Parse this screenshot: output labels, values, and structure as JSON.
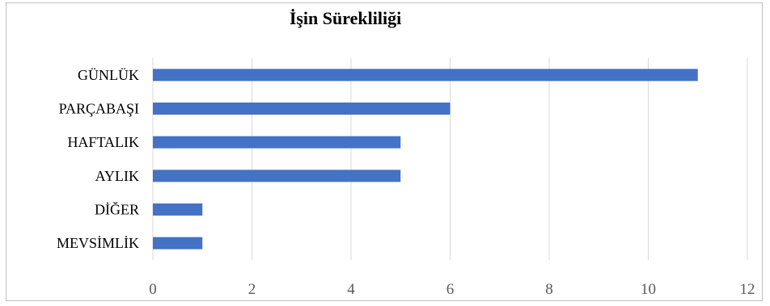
{
  "chart_data": {
    "type": "bar",
    "orientation": "horizontal",
    "title": "İşin Sürekliliği",
    "categories": [
      "GÜNLÜK",
      "PARÇABAŞI",
      "HAFTALIK",
      "AYLIK",
      "DİĞER",
      "MEVSİMLİK"
    ],
    "values": [
      11,
      6,
      5,
      5,
      1,
      1
    ],
    "xlim": [
      0,
      12
    ],
    "xticks": [
      "0",
      "2",
      "4",
      "6",
      "8",
      "10",
      "12"
    ],
    "grid": true,
    "legend": "none",
    "colors": {
      "bar": "#4472c4",
      "grid": "#d9d9d9",
      "border": "#bfbfbf"
    }
  }
}
